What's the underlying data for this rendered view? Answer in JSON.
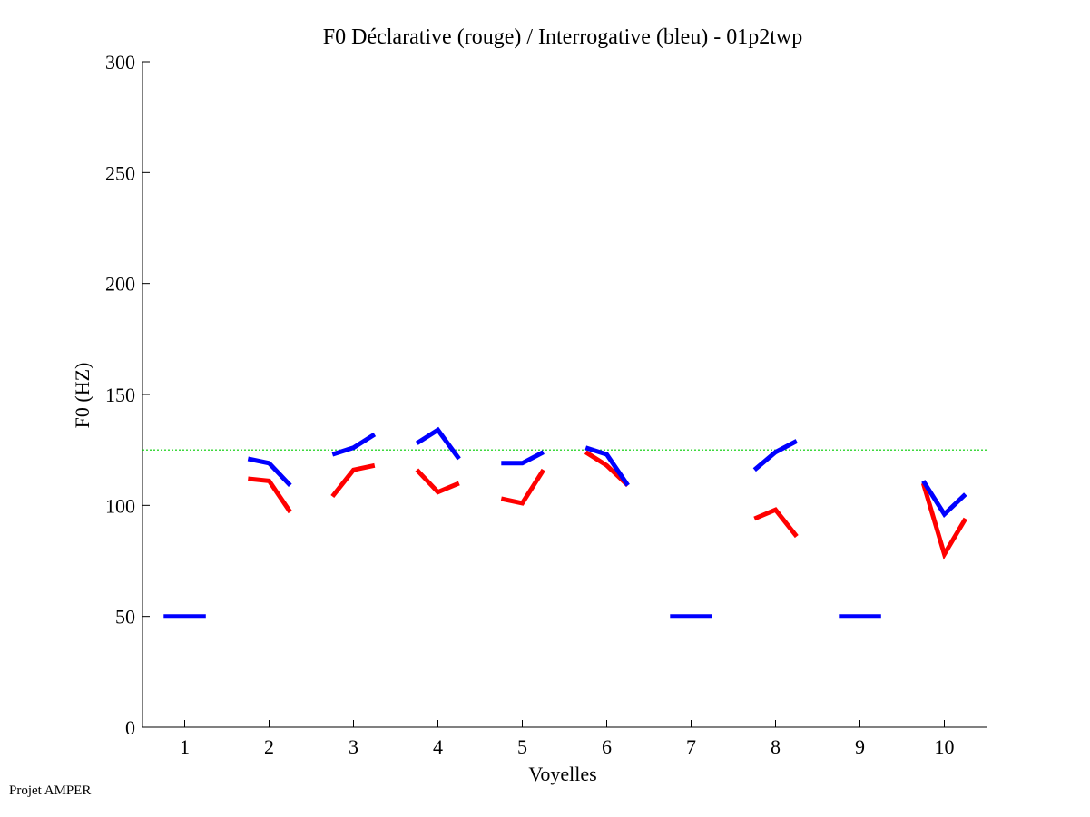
{
  "chart_data": {
    "type": "line",
    "title": "F0 Déclarative (rouge) / Interrogative (bleu) - 01p2twp",
    "xlabel": "Voyelles",
    "ylabel": "F0 (HZ)",
    "xlim": [
      0.5,
      10.5
    ],
    "ylim": [
      0,
      300
    ],
    "xticks": [
      1,
      2,
      3,
      4,
      5,
      6,
      7,
      8,
      9,
      10
    ],
    "yticks": [
      0,
      50,
      100,
      150,
      200,
      250,
      300
    ],
    "reference_line": {
      "y": 125,
      "style": "dotted",
      "color": "#00cc00"
    },
    "series": [
      {
        "color": "#ff0000",
        "segments": [
          {
            "vowel": 2,
            "x": [
              1.75,
              2.0,
              2.25
            ],
            "y": [
              112,
              111,
              97
            ]
          },
          {
            "vowel": 3,
            "x": [
              2.75,
              3.0,
              3.25
            ],
            "y": [
              104,
              116,
              118
            ]
          },
          {
            "vowel": 4,
            "x": [
              3.75,
              4.0,
              4.25
            ],
            "y": [
              116,
              106,
              110
            ]
          },
          {
            "vowel": 5,
            "x": [
              4.75,
              5.0,
              5.25
            ],
            "y": [
              103,
              101,
              116
            ]
          },
          {
            "vowel": 6,
            "x": [
              5.75,
              6.0,
              6.25
            ],
            "y": [
              124,
              118,
              109
            ]
          },
          {
            "vowel": 8,
            "x": [
              7.75,
              8.0,
              8.25
            ],
            "y": [
              94,
              98,
              86
            ]
          },
          {
            "vowel": 10,
            "x": [
              9.75,
              10.0,
              10.25
            ],
            "y": [
              110,
              78,
              94
            ]
          }
        ]
      },
      {
        "color": "#0000ff",
        "segments": [
          {
            "vowel": 1,
            "x": [
              0.75,
              1.0,
              1.25
            ],
            "y": [
              50,
              50,
              50
            ]
          },
          {
            "vowel": 2,
            "x": [
              1.75,
              2.0,
              2.25
            ],
            "y": [
              121,
              119,
              109
            ]
          },
          {
            "vowel": 3,
            "x": [
              2.75,
              3.0,
              3.25
            ],
            "y": [
              123,
              126,
              132
            ]
          },
          {
            "vowel": 4,
            "x": [
              3.75,
              4.0,
              4.25
            ],
            "y": [
              128,
              134,
              121
            ]
          },
          {
            "vowel": 5,
            "x": [
              4.75,
              5.0,
              5.25
            ],
            "y": [
              119,
              119,
              124
            ]
          },
          {
            "vowel": 6,
            "x": [
              5.75,
              6.0,
              6.25
            ],
            "y": [
              126,
              123,
              109
            ]
          },
          {
            "vowel": 7,
            "x": [
              6.75,
              7.0,
              7.25
            ],
            "y": [
              50,
              50,
              50
            ]
          },
          {
            "vowel": 8,
            "x": [
              7.75,
              8.0,
              8.25
            ],
            "y": [
              116,
              124,
              129
            ]
          },
          {
            "vowel": 9,
            "x": [
              8.75,
              9.0,
              9.25
            ],
            "y": [
              50,
              50,
              50
            ]
          },
          {
            "vowel": 10,
            "x": [
              9.75,
              10.0,
              10.25
            ],
            "y": [
              111,
              96,
              105
            ]
          }
        ]
      }
    ]
  },
  "footer": {
    "text": "Projet AMPER"
  }
}
